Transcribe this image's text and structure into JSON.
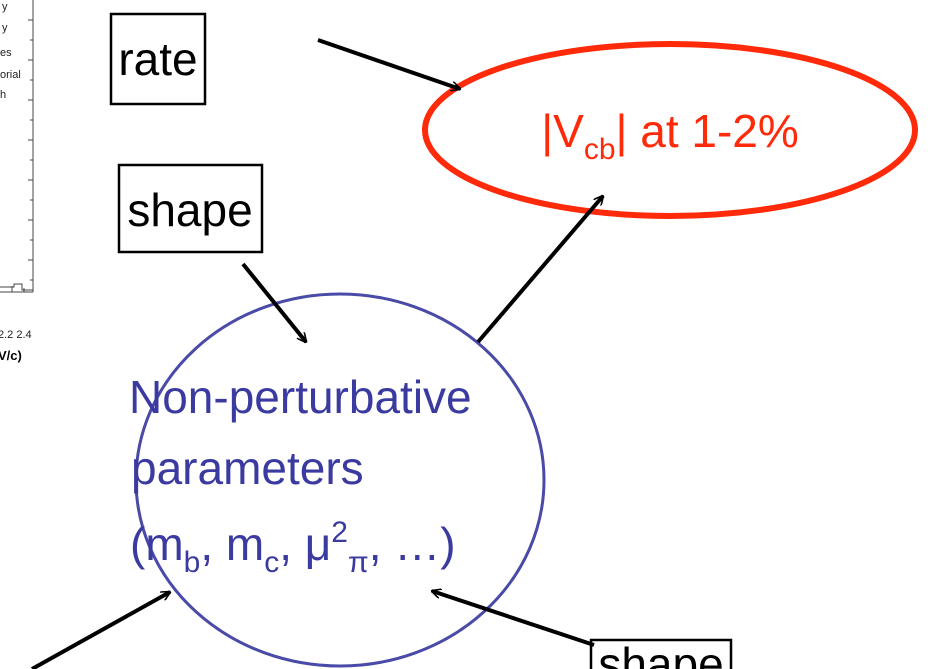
{
  "plot_fragment": {
    "legend": [
      "y",
      "y",
      "es",
      "orial",
      "h"
    ],
    "tick_labels": "2.2 2.4",
    "axis_label": "V/c)"
  },
  "boxes": {
    "rate": "rate",
    "shape_top": "shape",
    "shape_bottom": "shape"
  },
  "vcb": {
    "prefix": "|V",
    "sub": "cb",
    "suffix": "| at 1-2%"
  },
  "params": {
    "line1": "Non-perturbative",
    "line2": "parameters",
    "line3": [
      "(m",
      "b",
      ", m",
      "c",
      ", μ",
      "2",
      "π",
      ", …)"
    ]
  }
}
